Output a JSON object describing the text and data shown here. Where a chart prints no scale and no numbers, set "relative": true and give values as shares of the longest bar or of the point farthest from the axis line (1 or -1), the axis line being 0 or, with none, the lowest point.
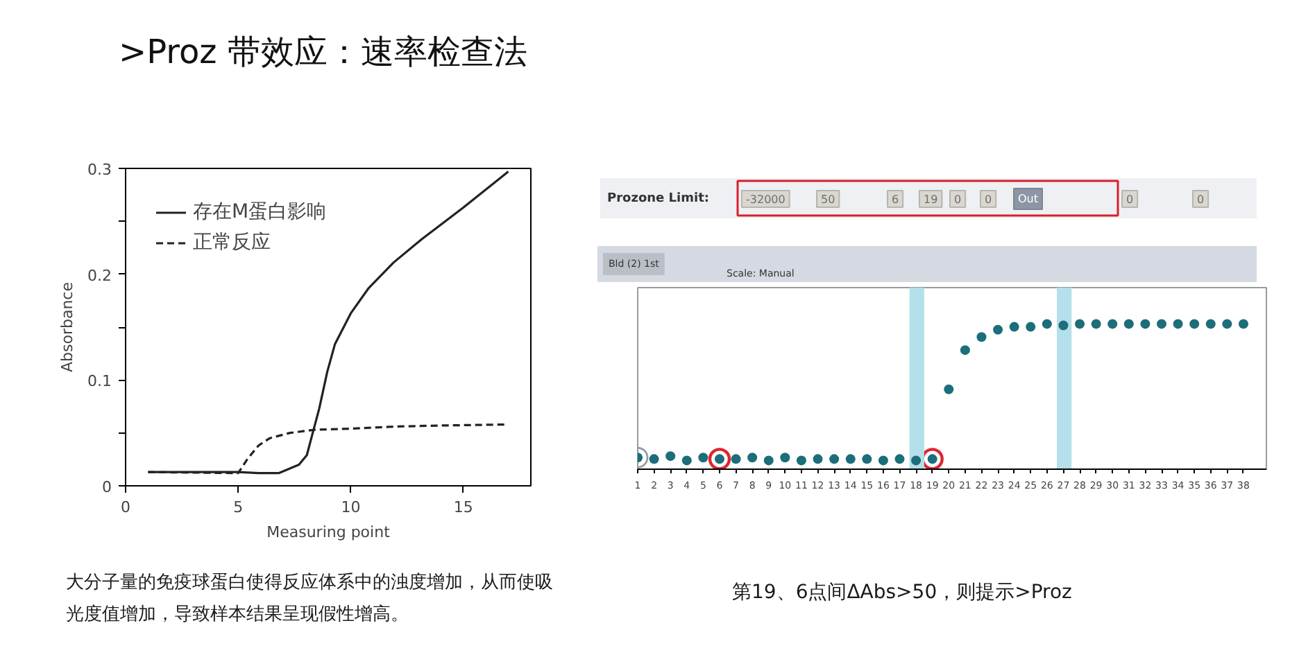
{
  "chart_data": [
    {
      "type": "line",
      "title": ">Proz 带效应：速率检查法",
      "xlabel": "Measuring point",
      "ylabel": "Absorbance",
      "xlim": [
        0,
        18
      ],
      "xticks": [
        0,
        5,
        10,
        15
      ],
      "ylim": [
        0,
        0.3
      ],
      "yticks": [
        0,
        {
          "value": 0.05,
          "label": null
        },
        0.1,
        {
          "value": 0.15,
          "label": null
        },
        0.2,
        {
          "value": 0.25,
          "label": null
        },
        0.3
      ],
      "legend": "top left",
      "series": [
        {
          "name": "存在M蛋白影响",
          "color": "#222222",
          "line_style": "solid",
          "x": [
            1,
            5,
            5.9,
            6.8,
            7.7,
            8.05,
            8.3,
            8.6,
            8.96,
            9.3,
            10,
            10.8,
            11.9,
            13.15,
            15,
            17
          ],
          "values": [
            0.013,
            0.013,
            0.012,
            0.012,
            0.02,
            0.029,
            0.049,
            0.073,
            0.108,
            0.134,
            0.163,
            0.187,
            0.211,
            0.233,
            0.263,
            0.297
          ]
        },
        {
          "name": "正常反应",
          "color": "#222222",
          "line_style": "dashed",
          "x": [
            1,
            5,
            5.4,
            5.9,
            6.4,
            7.3,
            8.4,
            10,
            12,
            14,
            17
          ],
          "values": [
            0.013,
            0.012,
            0.025,
            0.038,
            0.045,
            0.05,
            0.053,
            0.054,
            0.056,
            0.057,
            0.058
          ]
        }
      ],
      "annotations": [
        "大分子量的免疫球蛋白使得反应体系中的浊度增加，从而使吸光度值增加，导致样本结果呈现假性增高。"
      ]
    },
    {
      "type": "scatter",
      "relative": true,
      "x": [
        1,
        2,
        3,
        4,
        5,
        6,
        7,
        8,
        9,
        10,
        11,
        12,
        13,
        14,
        15,
        16,
        17,
        18,
        19,
        20,
        21,
        22,
        23,
        24,
        25,
        26,
        27,
        28,
        29,
        30,
        31,
        32,
        33,
        34,
        35,
        36,
        37,
        38
      ],
      "xlim": [
        1,
        39.4
      ],
      "xticks": [
        1,
        2,
        3,
        4,
        5,
        6,
        7,
        8,
        9,
        10,
        11,
        12,
        13,
        14,
        15,
        16,
        17,
        18,
        19,
        20,
        21,
        22,
        23,
        24,
        25,
        26,
        27,
        28,
        29,
        30,
        31,
        32,
        33,
        34,
        35,
        36,
        37,
        38
      ],
      "marker": "circle",
      "bands": [
        {
          "axis": "x",
          "from": 17.6,
          "to": 18.5,
          "color": "#b3e0ea"
        },
        {
          "axis": "x",
          "from": 26.6,
          "to": 27.5,
          "color": "#b3e0ea"
        }
      ],
      "series": [
        {
          "color": "#1b6e7a",
          "values": [
            0.08,
            0.07,
            0.09,
            0.06,
            0.08,
            0.07,
            0.07,
            0.08,
            0.06,
            0.08,
            0.06,
            0.07,
            0.07,
            0.07,
            0.07,
            0.06,
            0.07,
            0.06,
            0.07,
            0.55,
            0.82,
            0.91,
            0.96,
            0.98,
            0.98,
            1,
            0.99,
            1,
            1,
            1,
            1,
            1,
            1,
            1,
            1,
            1,
            1,
            1
          ]
        },
        {
          "color": "#e02430",
          "x": [
            6,
            19
          ],
          "values": [
            0.07,
            0.07
          ]
        },
        {
          "color": "#8fa0a4",
          "x": [
            1
          ],
          "values": [
            0.08
          ]
        }
      ],
      "annotations": [
        "Prozone Limit:",
        "-32000",
        "50",
        "6",
        "19",
        "0",
        "0",
        "Out",
        "0",
        "0",
        "Bld (2) 1st",
        "Scale: Manual",
        "第19、6点间ΔAbs>50，则提示>Proz"
      ]
    }
  ]
}
